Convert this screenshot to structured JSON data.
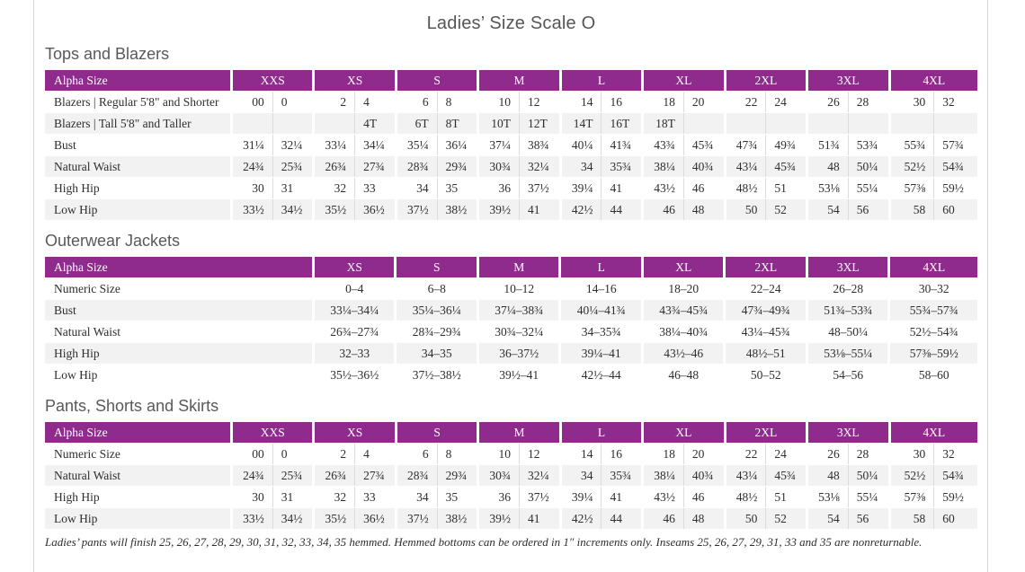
{
  "page": {
    "title": "Ladies’ Size Scale O",
    "footnote": "Ladies’ pants will finish 25, 26, 27, 28, 29, 30, 31, 32, 33, 34, 35 hemmed. Hemmed bottoms can be ordered in 1″ increments only. Inseams 25, 26, 27, 29, 31, 33 and 35 are nonreturnable."
  },
  "colors": {
    "header_purple": "#8f2b8d",
    "stripe_gray": "#f2f2f2",
    "page_border": "#d9d9d9",
    "heading_text": "#595959",
    "body_text": "#2e2e2e"
  },
  "tables": [
    {
      "section_title": "Tops and Blazers",
      "header_label": "Alpha Size",
      "split_columns": true,
      "wide_label": false,
      "columns": [
        "XXS",
        "XS",
        "S",
        "M",
        "L",
        "XL",
        "2XL",
        "3XL",
        "4XL"
      ],
      "rows": [
        {
          "label": "Blazers | Regular 5'8\" and Shorter",
          "values": [
            [
              "00",
              "0"
            ],
            [
              "2",
              "4"
            ],
            [
              "6",
              "8"
            ],
            [
              "10",
              "12"
            ],
            [
              "14",
              "16"
            ],
            [
              "18",
              "20"
            ],
            [
              "22",
              "24"
            ],
            [
              "26",
              "28"
            ],
            [
              "30",
              "32"
            ]
          ]
        },
        {
          "label": "Blazers | Tall 5'8\" and Taller",
          "values": [
            [
              "",
              ""
            ],
            [
              "",
              "4T"
            ],
            [
              "6T",
              "8T"
            ],
            [
              "10T",
              "12T"
            ],
            [
              "14T",
              "16T"
            ],
            [
              "18T",
              ""
            ],
            [
              "",
              ""
            ],
            [
              "",
              ""
            ],
            [
              "",
              ""
            ]
          ]
        },
        {
          "label": "Bust",
          "values": [
            [
              "31¼",
              "32¼"
            ],
            [
              "33¼",
              "34¼"
            ],
            [
              "35¼",
              "36¼"
            ],
            [
              "37¼",
              "38¾"
            ],
            [
              "40¼",
              "41¾"
            ],
            [
              "43¾",
              "45¾"
            ],
            [
              "47¾",
              "49¾"
            ],
            [
              "51¾",
              "53¾"
            ],
            [
              "55¾",
              "57¾"
            ]
          ]
        },
        {
          "label": "Natural Waist",
          "values": [
            [
              "24¾",
              "25¾"
            ],
            [
              "26¾",
              "27¾"
            ],
            [
              "28¾",
              "29¾"
            ],
            [
              "30¾",
              "32¼"
            ],
            [
              "34",
              "35¾"
            ],
            [
              "38¼",
              "40¾"
            ],
            [
              "43¼",
              "45¾"
            ],
            [
              "48",
              "50¼"
            ],
            [
              "52½",
              "54¾"
            ]
          ]
        },
        {
          "label": "High Hip",
          "values": [
            [
              "30",
              "31"
            ],
            [
              "32",
              "33"
            ],
            [
              "34",
              "35"
            ],
            [
              "36",
              "37½"
            ],
            [
              "39¼",
              "41"
            ],
            [
              "43½",
              "46"
            ],
            [
              "48½",
              "51"
            ],
            [
              "53⅛",
              "55¼"
            ],
            [
              "57⅜",
              "59½"
            ]
          ]
        },
        {
          "label": "Low Hip",
          "values": [
            [
              "33½",
              "34½"
            ],
            [
              "35½",
              "36½"
            ],
            [
              "37½",
              "38½"
            ],
            [
              "39½",
              "41"
            ],
            [
              "42½",
              "44"
            ],
            [
              "46",
              "48"
            ],
            [
              "50",
              "52"
            ],
            [
              "54",
              "56"
            ],
            [
              "58",
              "60"
            ]
          ]
        }
      ]
    },
    {
      "section_title": "Outerwear Jackets",
      "header_label": "Alpha Size",
      "split_columns": false,
      "wide_label": true,
      "columns": [
        "XS",
        "S",
        "M",
        "L",
        "XL",
        "2XL",
        "3XL",
        "4XL"
      ],
      "rows": [
        {
          "label": "Numeric Size",
          "values": [
            "0–4",
            "6–8",
            "10–12",
            "14–16",
            "18–20",
            "22–24",
            "26–28",
            "30–32"
          ]
        },
        {
          "label": "Bust",
          "values": [
            "33¼–34¼",
            "35¼–36¼",
            "37¼–38¾",
            "40¼–41¾",
            "43¾–45¾",
            "47¾–49¾",
            "51¾–53¾",
            "55¾–57¾"
          ]
        },
        {
          "label": "Natural Waist",
          "values": [
            "26¾–27¾",
            "28¾–29¾",
            "30¾–32¼",
            "34–35¾",
            "38¼–40¾",
            "43¼–45¾",
            "48–50¼",
            "52½–54¾"
          ]
        },
        {
          "label": "High Hip",
          "values": [
            "32–33",
            "34–35",
            "36–37½",
            "39¼–41",
            "43½–46",
            "48½–51",
            "53⅛–55¼",
            "57⅜–59½"
          ]
        },
        {
          "label": "Low Hip",
          "values": [
            "35½–36½",
            "37½–38½",
            "39½–41",
            "42½–44",
            "46–48",
            "50–52",
            "54–56",
            "58–60"
          ]
        }
      ]
    },
    {
      "section_title": "Pants, Shorts and Skirts",
      "header_label": "Alpha Size",
      "split_columns": true,
      "wide_label": false,
      "columns": [
        "XXS",
        "XS",
        "S",
        "M",
        "L",
        "XL",
        "2XL",
        "3XL",
        "4XL"
      ],
      "rows": [
        {
          "label": "Numeric Size",
          "values": [
            [
              "00",
              "0"
            ],
            [
              "2",
              "4"
            ],
            [
              "6",
              "8"
            ],
            [
              "10",
              "12"
            ],
            [
              "14",
              "16"
            ],
            [
              "18",
              "20"
            ],
            [
              "22",
              "24"
            ],
            [
              "26",
              "28"
            ],
            [
              "30",
              "32"
            ]
          ]
        },
        {
          "label": "Natural Waist",
          "values": [
            [
              "24¾",
              "25¾"
            ],
            [
              "26¾",
              "27¾"
            ],
            [
              "28¾",
              "29¾"
            ],
            [
              "30¾",
              "32¼"
            ],
            [
              "34",
              "35¾"
            ],
            [
              "38¼",
              "40¾"
            ],
            [
              "43¼",
              "45¾"
            ],
            [
              "48",
              "50¼"
            ],
            [
              "52½",
              "54¾"
            ]
          ]
        },
        {
          "label": "High Hip",
          "values": [
            [
              "30",
              "31"
            ],
            [
              "32",
              "33"
            ],
            [
              "34",
              "35"
            ],
            [
              "36",
              "37½"
            ],
            [
              "39¼",
              "41"
            ],
            [
              "43½",
              "46"
            ],
            [
              "48½",
              "51"
            ],
            [
              "53⅛",
              "55¼"
            ],
            [
              "57⅜",
              "59½"
            ]
          ]
        },
        {
          "label": "Low Hip",
          "values": [
            [
              "33½",
              "34½"
            ],
            [
              "35½",
              "36½"
            ],
            [
              "37½",
              "38½"
            ],
            [
              "39½",
              "41"
            ],
            [
              "42½",
              "44"
            ],
            [
              "46",
              "48"
            ],
            [
              "50",
              "52"
            ],
            [
              "54",
              "56"
            ],
            [
              "58",
              "60"
            ]
          ]
        }
      ]
    }
  ]
}
